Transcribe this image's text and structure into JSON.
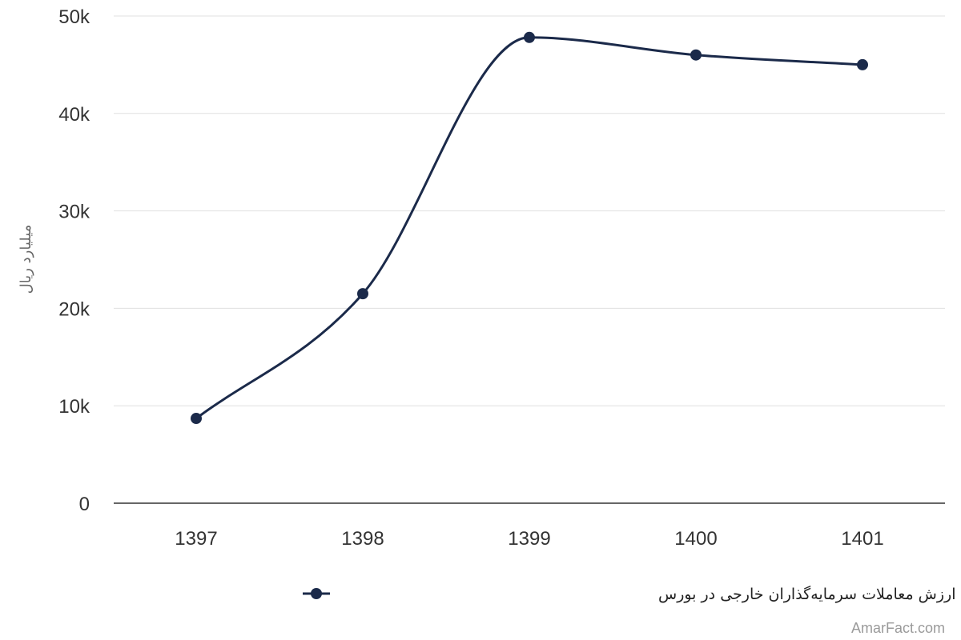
{
  "chart_data": {
    "type": "line",
    "title": "",
    "xlabel": "",
    "ylabel": "میلیارد ریال",
    "categories": [
      "1397",
      "1398",
      "1399",
      "1400",
      "1401"
    ],
    "series": [
      {
        "name": "ارزش معاملات سرمایه‌گذاران خارجی در بورس",
        "values": [
          8700,
          21500,
          47800,
          46000,
          45000
        ],
        "color": "#1b2a4a"
      }
    ],
    "ylim": [
      0,
      50000
    ],
    "yticks": [
      {
        "value": 0,
        "label": "0"
      },
      {
        "value": 10000,
        "label": "10k"
      },
      {
        "value": 20000,
        "label": "20k"
      },
      {
        "value": 30000,
        "label": "30k"
      },
      {
        "value": 40000,
        "label": "40k"
      },
      {
        "value": 50000,
        "label": "50k"
      }
    ],
    "grid": true,
    "legend_position": "bottom-center",
    "smooth": true
  },
  "watermark": "AmarFact.com"
}
